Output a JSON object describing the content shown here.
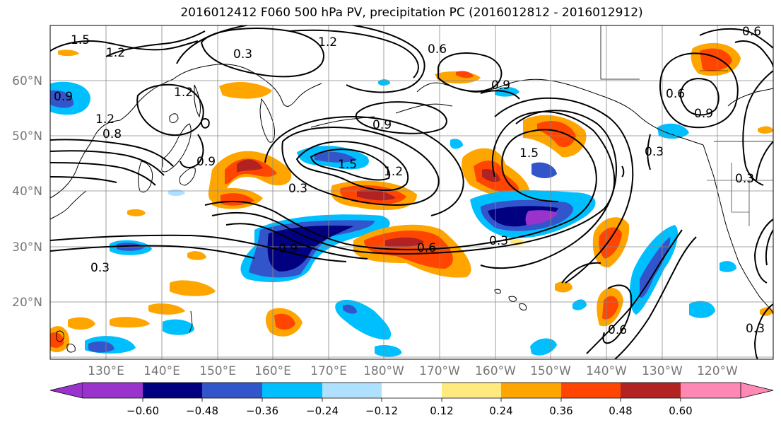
{
  "title": "2016012412 F060 500 hPa PV, precipitation PC (2016012812 - 2016012912)",
  "lat_labels": [
    "60°N",
    "50°N",
    "40°N",
    "30°N",
    "20°N"
  ],
  "lon_labels": [
    "130°E",
    "140°E",
    "150°E",
    "160°E",
    "170°E",
    "180°W",
    "170°W",
    "160°W",
    "150°W",
    "140°W",
    "130°W",
    "120°W"
  ],
  "contour_labels": [
    "1.5",
    "1.2",
    "1.2",
    "0.3",
    "0.6",
    "0.6",
    "1.2",
    "0.9",
    "0.9",
    "0.9",
    "0.9",
    "0.9",
    "1.2",
    "1.5",
    "1.2",
    "0.3",
    "0.9",
    "0.3",
    "0.3",
    "0.6",
    "0.6",
    "0.3",
    "0.3",
    "0.6",
    "0.3",
    "1.5",
    "0.8"
  ],
  "colorbar": {
    "ticks": [
      "−0.60",
      "−0.48",
      "−0.36",
      "−0.24",
      "−0.12",
      "0.12",
      "0.24",
      "0.36",
      "0.48",
      "0.60"
    ],
    "colors": {
      "lt_-0.60": "#9933cc",
      "-0.60_-0.48": "#000080",
      "-0.48_-0.36": "#3355cc",
      "-0.36_-0.24": "#00bfff",
      "-0.24_-0.12": "#b0e0ff",
      "-0.12_0.12": "#ffffff",
      "0.12_0.24": "#ffea80",
      "0.24_0.36": "#ffa500",
      "0.36_0.48": "#ff4500",
      "0.48_0.60": "#b22222",
      "gt_0.60": "#ff88b4"
    }
  }
}
